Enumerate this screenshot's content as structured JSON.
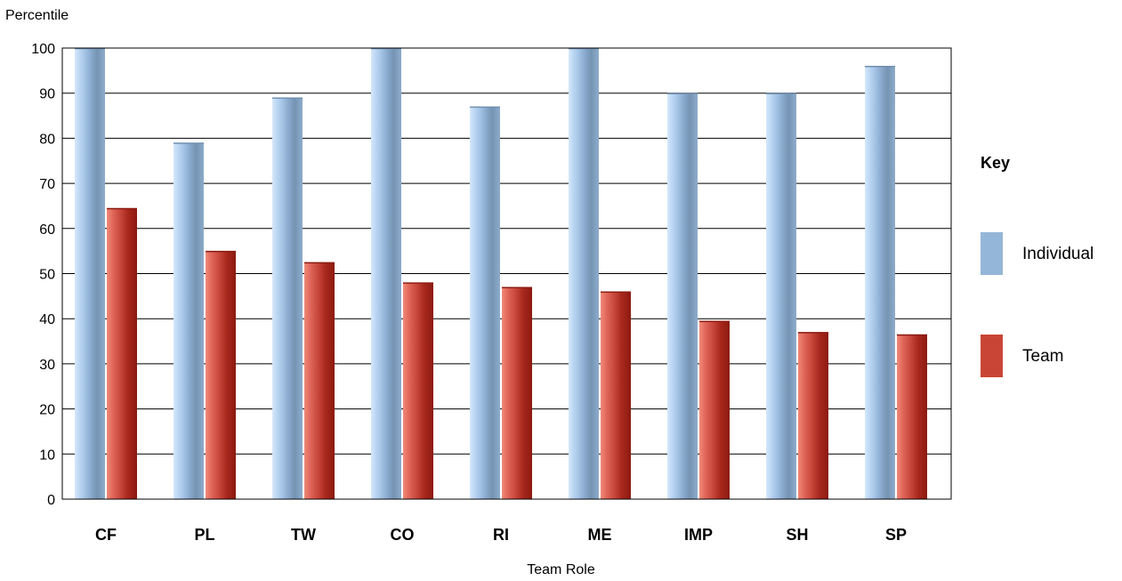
{
  "chart_data": {
    "type": "bar",
    "xlabel": "Team Role",
    "ylabel": "Percentile",
    "ylim": [
      0,
      100
    ],
    "yticks": [
      0,
      10,
      20,
      30,
      40,
      50,
      60,
      70,
      80,
      90,
      100
    ],
    "grid": true,
    "legend_title": "Key",
    "legend_position": "right",
    "categories": [
      "CF",
      "PL",
      "TW",
      "CO",
      "RI",
      "ME",
      "IMP",
      "SH",
      "SP"
    ],
    "series": [
      {
        "name": "Individual",
        "color": "#94b6d8",
        "values": [
          100,
          79,
          89,
          100,
          87,
          100,
          90,
          90,
          96
        ]
      },
      {
        "name": "Team",
        "color": "#c94535",
        "values": [
          64.5,
          55,
          52.5,
          48,
          47,
          46,
          39.5,
          37,
          36.5
        ]
      }
    ]
  }
}
